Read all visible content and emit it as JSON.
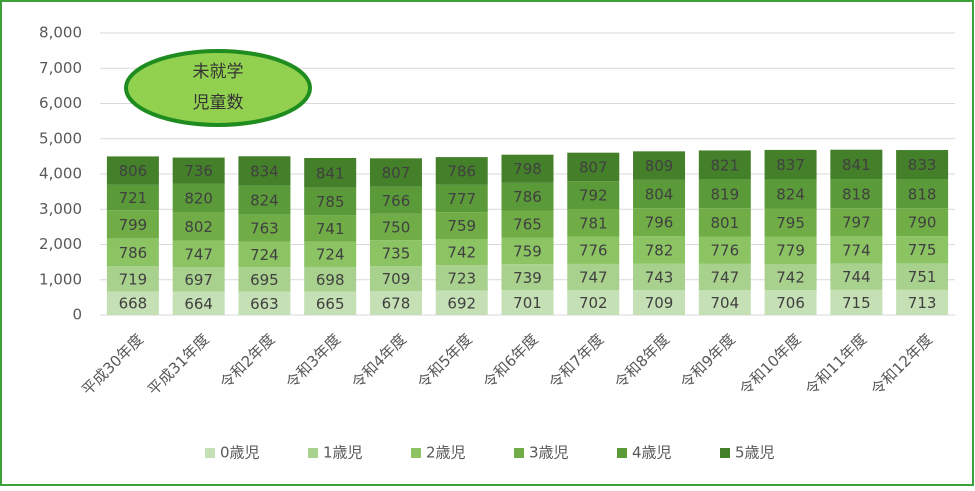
{
  "chart_data": {
    "type": "stacked_bar",
    "annotation": [
      "未就学",
      "児童数"
    ],
    "categories": [
      "平成30年度",
      "平成31年度",
      "令和2年度",
      "令和3年度",
      "令和4年度",
      "令和5年度",
      "令和6年度",
      "令和7年度",
      "令和8年度",
      "令和9年度",
      "令和10年度",
      "令和11年度",
      "令和12年度"
    ],
    "series": [
      {
        "name": "0歳児",
        "color": "#c5e0b4",
        "values": [
          668,
          664,
          663,
          665,
          678,
          692,
          701,
          702,
          709,
          704,
          706,
          715,
          713
        ]
      },
      {
        "name": "1歳児",
        "color": "#a9d18e",
        "values": [
          719,
          697,
          695,
          698,
          709,
          723,
          739,
          747,
          743,
          747,
          742,
          744,
          751
        ]
      },
      {
        "name": "2歳児",
        "color": "#8cc464",
        "values": [
          786,
          747,
          724,
          724,
          735,
          742,
          759,
          776,
          782,
          776,
          779,
          774,
          775
        ]
      },
      {
        "name": "3歳児",
        "color": "#70ad47",
        "values": [
          799,
          802,
          763,
          741,
          750,
          759,
          765,
          781,
          796,
          801,
          795,
          797,
          790
        ]
      },
      {
        "name": "4歳児",
        "color": "#5a9a38",
        "values": [
          721,
          820,
          824,
          785,
          766,
          777,
          786,
          792,
          804,
          819,
          824,
          818,
          818
        ]
      },
      {
        "name": "5歳児",
        "color": "#44802a",
        "values": [
          806,
          736,
          834,
          841,
          807,
          786,
          798,
          807,
          809,
          821,
          837,
          841,
          833
        ]
      }
    ],
    "ylim": [
      0,
      8000
    ],
    "yticks": [
      0,
      {
        "value": 1000,
        "label": "1,000"
      },
      {
        "value": 2000,
        "label": "2,000"
      },
      {
        "value": 3000,
        "label": "3,000"
      },
      {
        "value": 4000,
        "label": "4,000"
      },
      {
        "value": 5000,
        "label": "5,000"
      },
      {
        "value": 6000,
        "label": "6,000"
      },
      {
        "value": 7000,
        "label": "7,000"
      },
      {
        "value": 8000,
        "label": "8,000"
      }
    ],
    "grid": true,
    "legend": "bottom"
  }
}
